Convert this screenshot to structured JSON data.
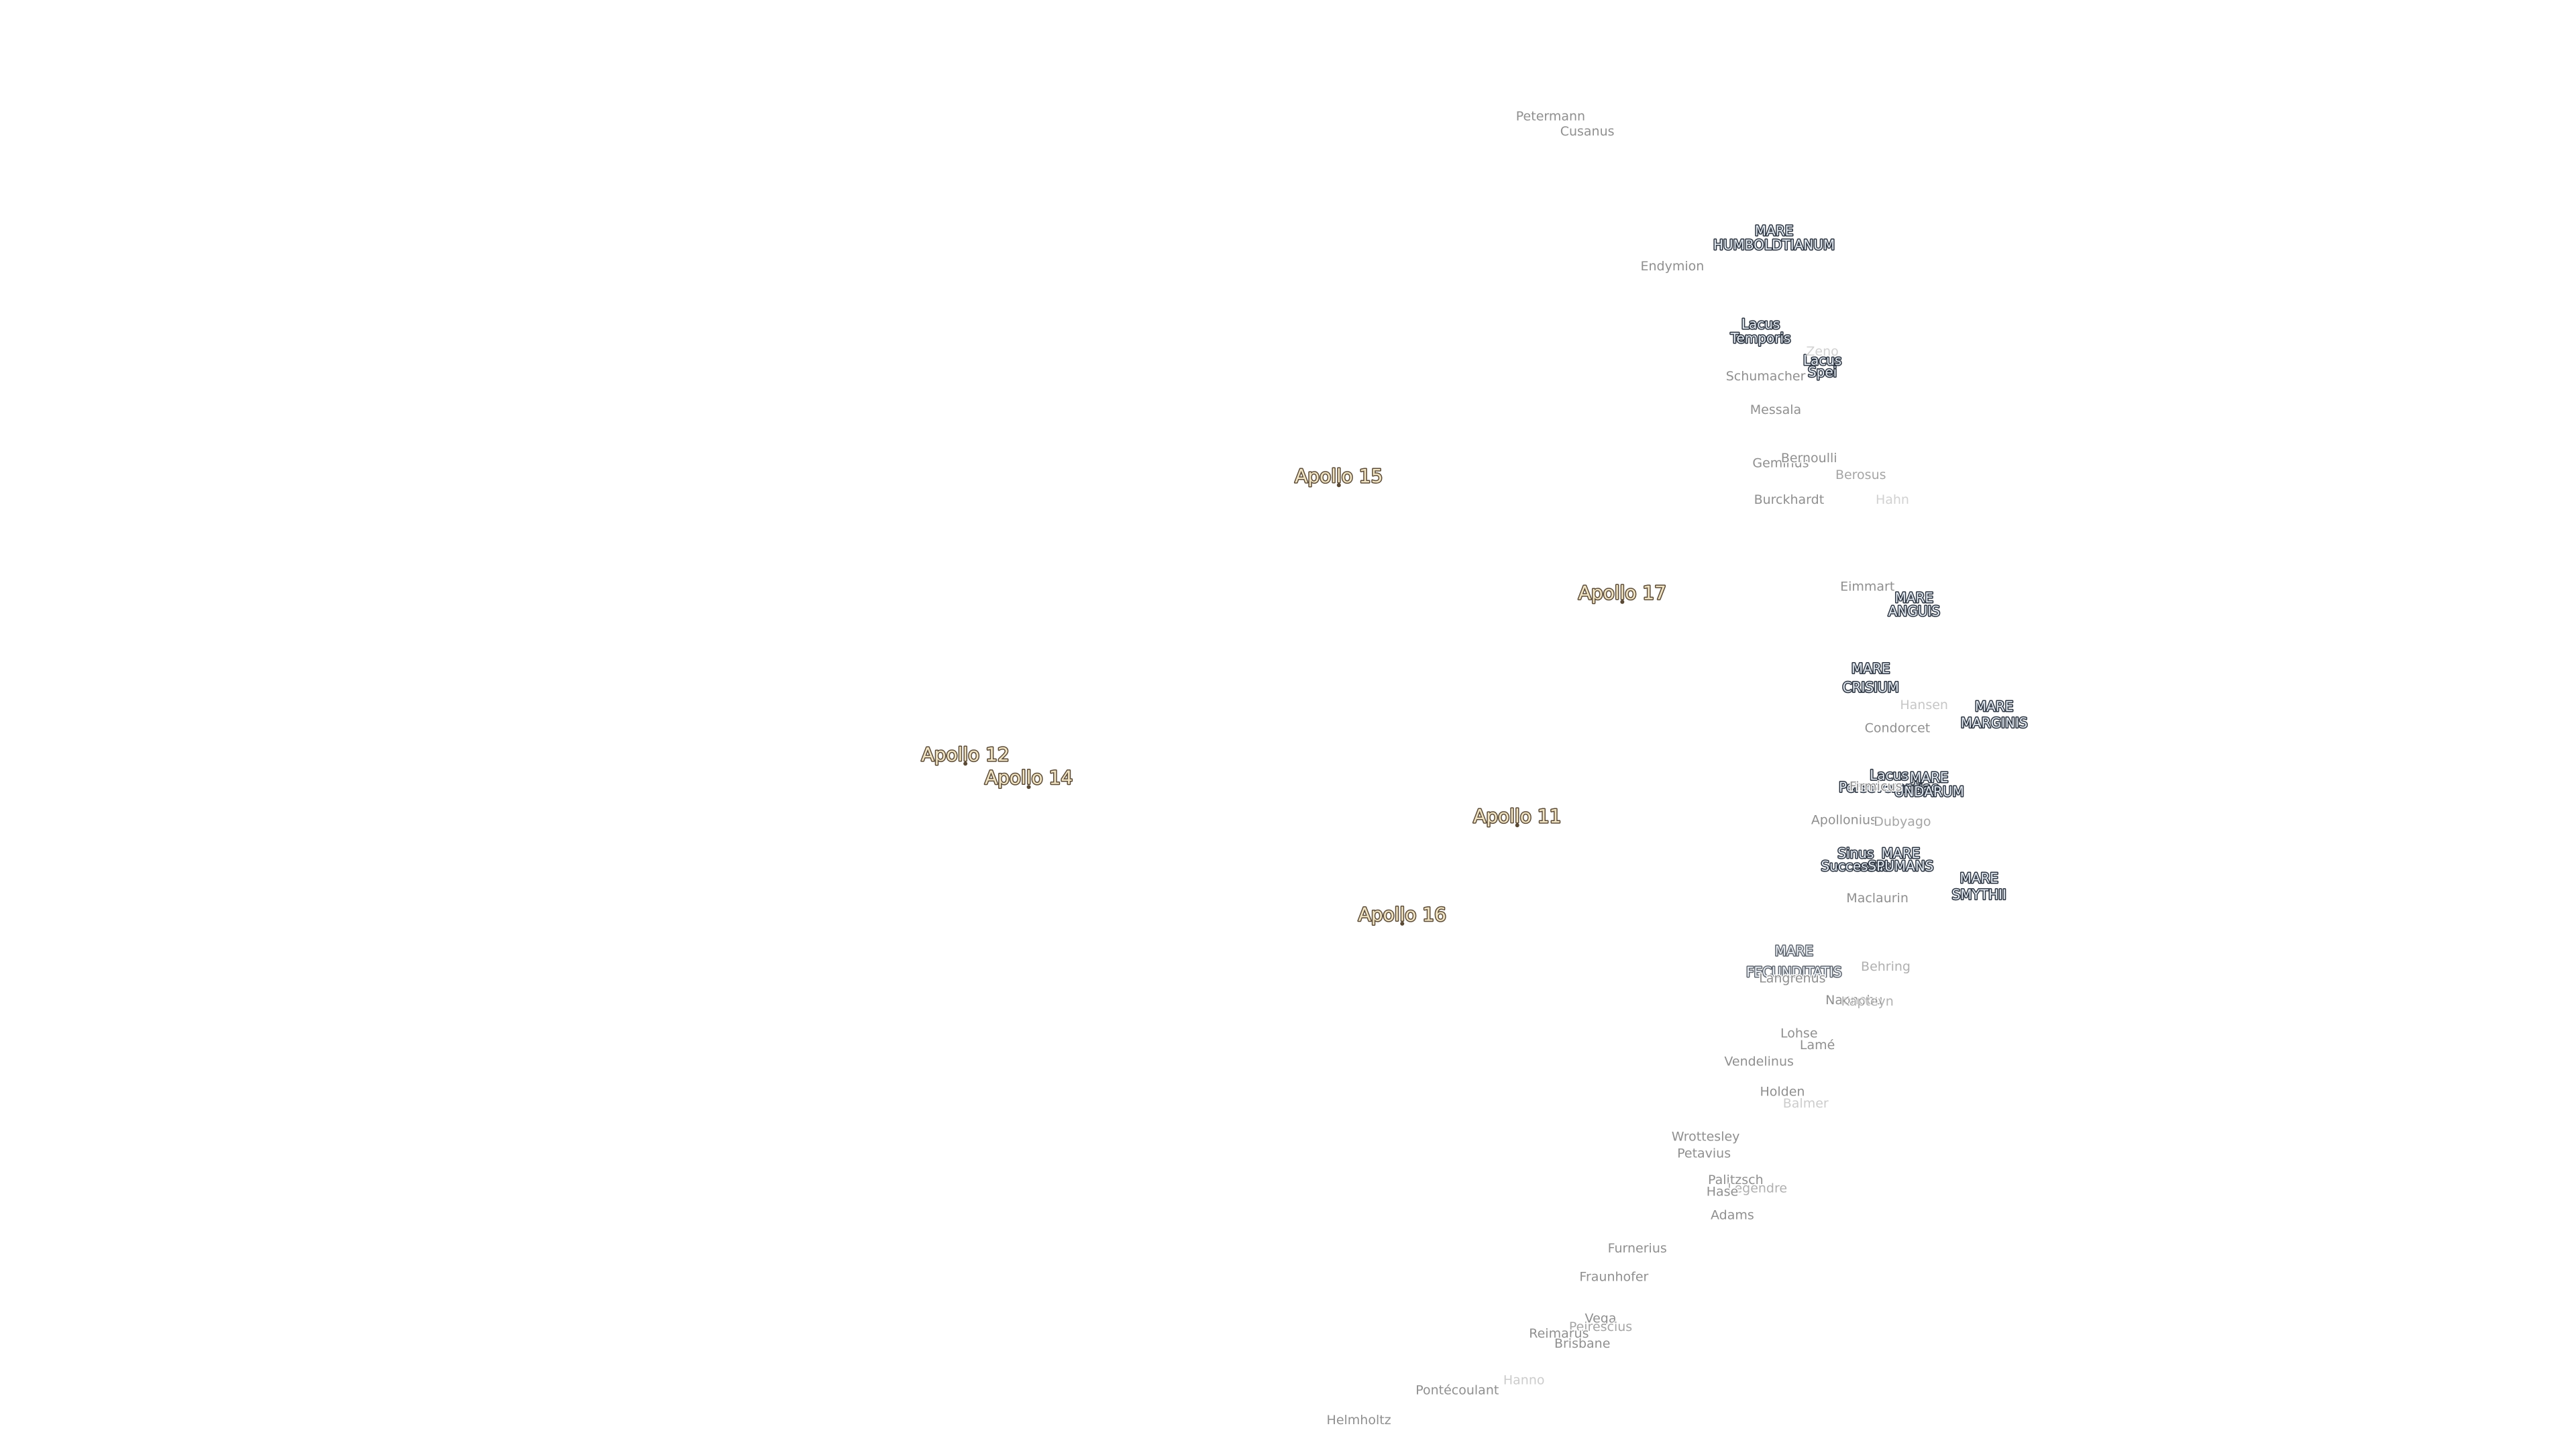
{
  "apollo_sites": [
    "Apollo 15",
    "Apollo 17",
    "Apollo 12",
    "Apollo 14",
    "Apollo 11",
    "Apollo 16"
  ],
  "maria": [
    [
      "MARE",
      "HUMBOLDTIANUM"
    ],
    [
      "Lacus",
      "Temporis"
    ],
    [
      "Lacus",
      "Spei"
    ],
    [
      "MARE",
      "ANGUIS"
    ],
    [
      "MARE",
      "CRISIUM"
    ],
    [
      "MARE",
      "MARGINIS"
    ],
    [
      "Lacus",
      "Perseverantiae"
    ],
    [
      "MARE",
      "UNDARUM"
    ],
    [
      "Sinus",
      "Successus"
    ],
    [
      "MARE",
      "SPUMANS"
    ],
    [
      "MARE",
      "SMYTHII"
    ],
    [
      "MARE",
      "FECUNDITATIS"
    ]
  ],
  "craters": [
    "Petermann",
    "Cusanus",
    "Endymion",
    "Zeno",
    "Schumacher",
    "Messala",
    "Geminus",
    "Bernoulli",
    "Berosus",
    "Burckhardt",
    "Hahn",
    "Eimmart",
    "Hansen",
    "Condorcet",
    "Firmicus",
    "Apollonius",
    "Dubyago",
    "Maclaurin",
    "Behring",
    "Langrenus",
    "Naonobu",
    "Kapteyn",
    "Lohse",
    "Lamé",
    "Vendelinus",
    "Holden",
    "Balmer",
    "Wrottesley",
    "Petavius",
    "Palitzsch",
    "Legendre",
    "Hase",
    "Adams",
    "Furnerius",
    "Fraunhofer",
    "Vega",
    "Peirescius",
    "Reimarus",
    "Brisbane",
    "Hanno",
    "Pontécoulant",
    "Helmholtz"
  ]
}
